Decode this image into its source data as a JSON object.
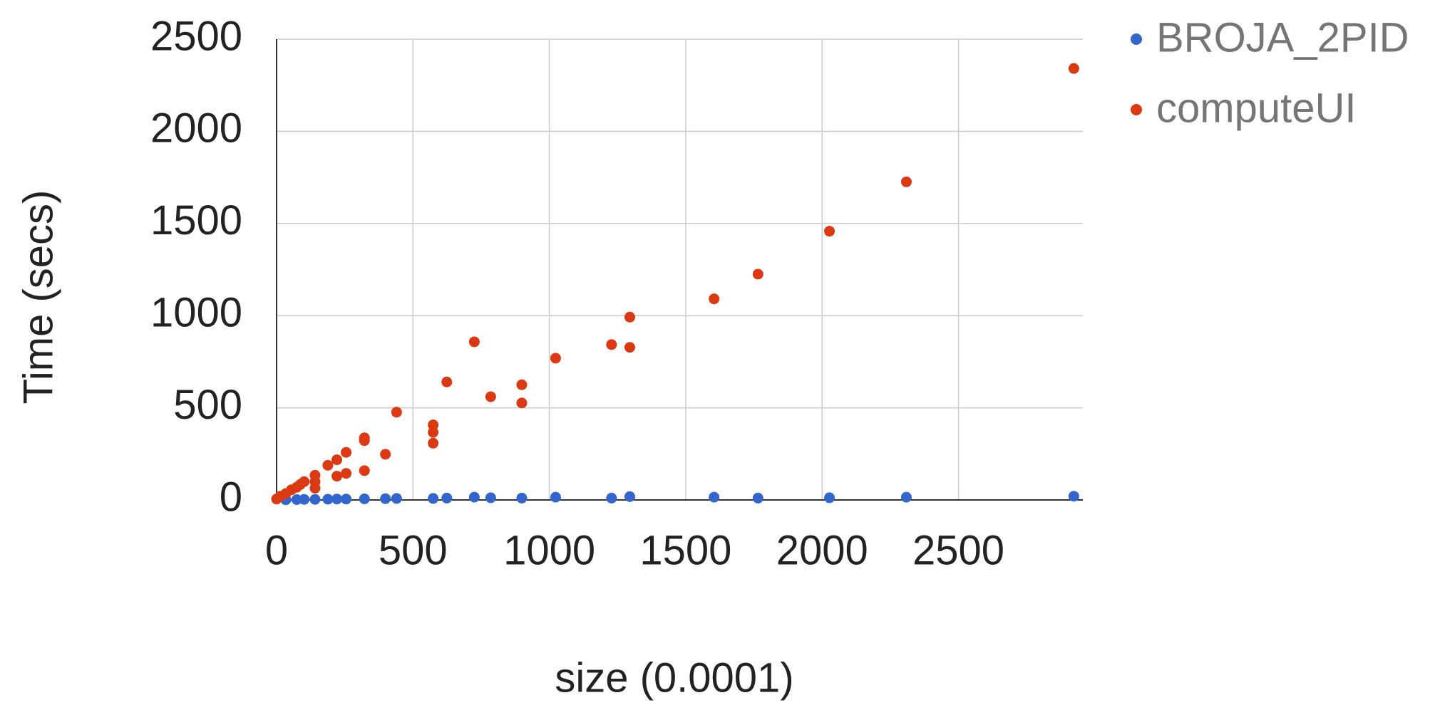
{
  "chart_data": {
    "type": "scatter",
    "x_label": "size (0.0001)",
    "y_label": "Time (secs)",
    "xlim": [
      0,
      2956
    ],
    "ylim": [
      0,
      2500
    ],
    "xticks": [
      0,
      500,
      1000,
      1500,
      2000,
      2500
    ],
    "yticks": [
      0,
      500,
      1000,
      1500,
      2000,
      2500
    ],
    "grid": true,
    "legend": "right",
    "series": [
      {
        "name": "BROJA_2PID",
        "color": "#3366cc",
        "x": [
          2923,
          2309,
          2027,
          1765,
          1604,
          1295,
          1228,
          1023,
          899,
          785,
          725,
          624,
          574,
          440,
          399,
          322,
          255,
          221,
          188,
          141,
          101,
          74,
          34
        ],
        "values": [
          20,
          15,
          12,
          10,
          15,
          18,
          10,
          15,
          10,
          12,
          15,
          10,
          8,
          8,
          7,
          6,
          5,
          5,
          4,
          3,
          3,
          2,
          1
        ]
      },
      {
        "name": "computeUI",
        "color": "#dc3912",
        "x": [
          2923,
          2309,
          2027,
          1765,
          1604,
          1295,
          1295,
          1228,
          1023,
          899,
          899,
          785,
          725,
          624,
          574,
          574,
          574,
          440,
          399,
          322,
          322,
          322,
          255,
          255,
          221,
          221,
          188,
          141,
          141,
          141,
          101,
          87,
          74,
          54,
          34,
          13,
          0
        ],
        "values": [
          2341,
          1726,
          1458,
          1225,
          1091,
          992,
          828,
          843,
          769,
          625,
          526,
          560,
          858,
          640,
          407,
          367,
          308,
          476,
          248,
          337,
          322,
          159,
          258,
          144,
          218,
          129,
          188,
          134,
          99,
          64,
          99,
          84,
          69,
          55,
          35,
          20,
          5
        ]
      }
    ]
  }
}
